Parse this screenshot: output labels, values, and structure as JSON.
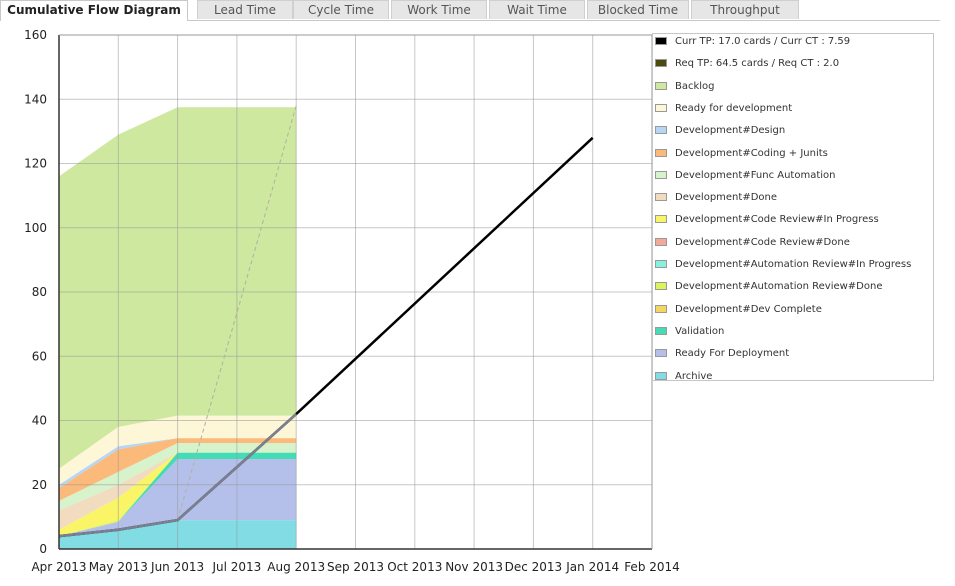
{
  "tabs": [
    {
      "label": "Cumulative Flow Diagram",
      "active": true
    },
    {
      "label": "Lead Time",
      "active": false
    },
    {
      "label": "Cycle Time",
      "active": false
    },
    {
      "label": "Work Time",
      "active": false
    },
    {
      "label": "Wait Time",
      "active": false
    },
    {
      "label": "Blocked Time",
      "active": false
    },
    {
      "label": "Throughput",
      "active": false
    }
  ],
  "legend": [
    {
      "label": "Curr TP: 17.0 cards / Curr CT : 7.59",
      "color": "#000000"
    },
    {
      "label": "Req TP: 64.5 cards / Req CT : 2.0",
      "color": "#4b4b10"
    },
    {
      "label": "Backlog",
      "color": "#cfe8a0"
    },
    {
      "label": "Ready for development",
      "color": "#fdf7d8"
    },
    {
      "label": "Development#Design",
      "color": "#b6d6f6"
    },
    {
      "label": "Development#Coding + Junits",
      "color": "#fbb97a"
    },
    {
      "label": "Development#Func Automation",
      "color": "#d6f3cc"
    },
    {
      "label": "Development#Done",
      "color": "#f1dcc0"
    },
    {
      "label": "Development#Code Review#In Progress",
      "color": "#f9f566"
    },
    {
      "label": "Development#Code Review#Done",
      "color": "#f6a898"
    },
    {
      "label": "Development#Automation Review#In Progress",
      "color": "#86f2de"
    },
    {
      "label": "Development#Automation Review#Done",
      "color": "#d9f55a"
    },
    {
      "label": "Development#Dev Complete",
      "color": "#f6d560"
    },
    {
      "label": "Validation",
      "color": "#44dcb4"
    },
    {
      "label": "Ready For Deployment",
      "color": "#b4c0ea"
    },
    {
      "label": "Archive",
      "color": "#82dce4"
    }
  ],
  "chart_data": {
    "type": "area",
    "title": "",
    "xlabel": "",
    "ylabel": "",
    "ylim": [
      0,
      160
    ],
    "yticks": [
      0,
      20,
      40,
      60,
      80,
      100,
      120,
      140,
      160
    ],
    "xticks": [
      "Apr 2013",
      "May 2013",
      "Jun 2013",
      "Jul 2013",
      "Aug 2013",
      "Sep 2013",
      "Oct 2013",
      "Nov 2013",
      "Dec 2013",
      "Jan 2014",
      "Feb 2014"
    ],
    "x": [
      "Apr 2013",
      "May 2013",
      "Jun 2013",
      "Aug 2013"
    ],
    "grid": true,
    "legend_position": "right",
    "stacked_series": [
      {
        "name": "Archive",
        "color": "#82dce4",
        "values": [
          4,
          6,
          9,
          9
        ]
      },
      {
        "name": "Ready For Deployment",
        "color": "#b4c0ea",
        "values": [
          0,
          2.5,
          19,
          19
        ]
      },
      {
        "name": "Validation",
        "color": "#44dcb4",
        "values": [
          0,
          0,
          2,
          2
        ]
      },
      {
        "name": "Development#Dev Complete",
        "color": "#f6d560",
        "values": [
          0,
          0,
          0,
          0
        ]
      },
      {
        "name": "Development#Automation Review#Done",
        "color": "#d9f55a",
        "values": [
          0,
          0.5,
          0,
          0
        ]
      },
      {
        "name": "Development#Automation Review#In Progress",
        "color": "#86f2de",
        "values": [
          0,
          0,
          0,
          0
        ]
      },
      {
        "name": "Development#Code Review#Done",
        "color": "#f6a898",
        "values": [
          0,
          0,
          0,
          0
        ]
      },
      {
        "name": "Development#Code Review#In Progress",
        "color": "#f9f566",
        "values": [
          2,
          7,
          0,
          0
        ]
      },
      {
        "name": "Development#Done",
        "color": "#f1dcc0",
        "values": [
          6,
          4,
          0,
          0
        ]
      },
      {
        "name": "Development#Func Automation",
        "color": "#d6f3cc",
        "values": [
          3,
          4,
          3,
          3
        ]
      },
      {
        "name": "Development#Coding + Junits",
        "color": "#fbb97a",
        "values": [
          4,
          7,
          1.5,
          1.5
        ]
      },
      {
        "name": "Development#Design",
        "color": "#b6d6f6",
        "values": [
          1,
          1,
          0,
          0
        ]
      },
      {
        "name": "Ready for development",
        "color": "#fdf7d8",
        "values": [
          5,
          6,
          7,
          7
        ]
      },
      {
        "name": "Backlog",
        "color": "#cfe8a0",
        "values": [
          91,
          91,
          96,
          96
        ]
      }
    ],
    "lines": [
      {
        "name": "Curr TP: 17.0 cards / Curr CT : 7.59",
        "color": "#000000",
        "points": [
          [
            "Apr 2013",
            4
          ],
          [
            "May 2013",
            6
          ],
          [
            "Jun 2013",
            9
          ],
          [
            "Aug 2013",
            42
          ],
          [
            "Jan 2014",
            128
          ]
        ]
      },
      {
        "name": "Req TP: 64.5 cards / Req CT : 2.0",
        "color": "#b0b0a0",
        "style": "dashed",
        "points": [
          [
            "Jun 2013",
            9
          ],
          [
            "Aug 2013",
            138
          ]
        ]
      }
    ]
  }
}
